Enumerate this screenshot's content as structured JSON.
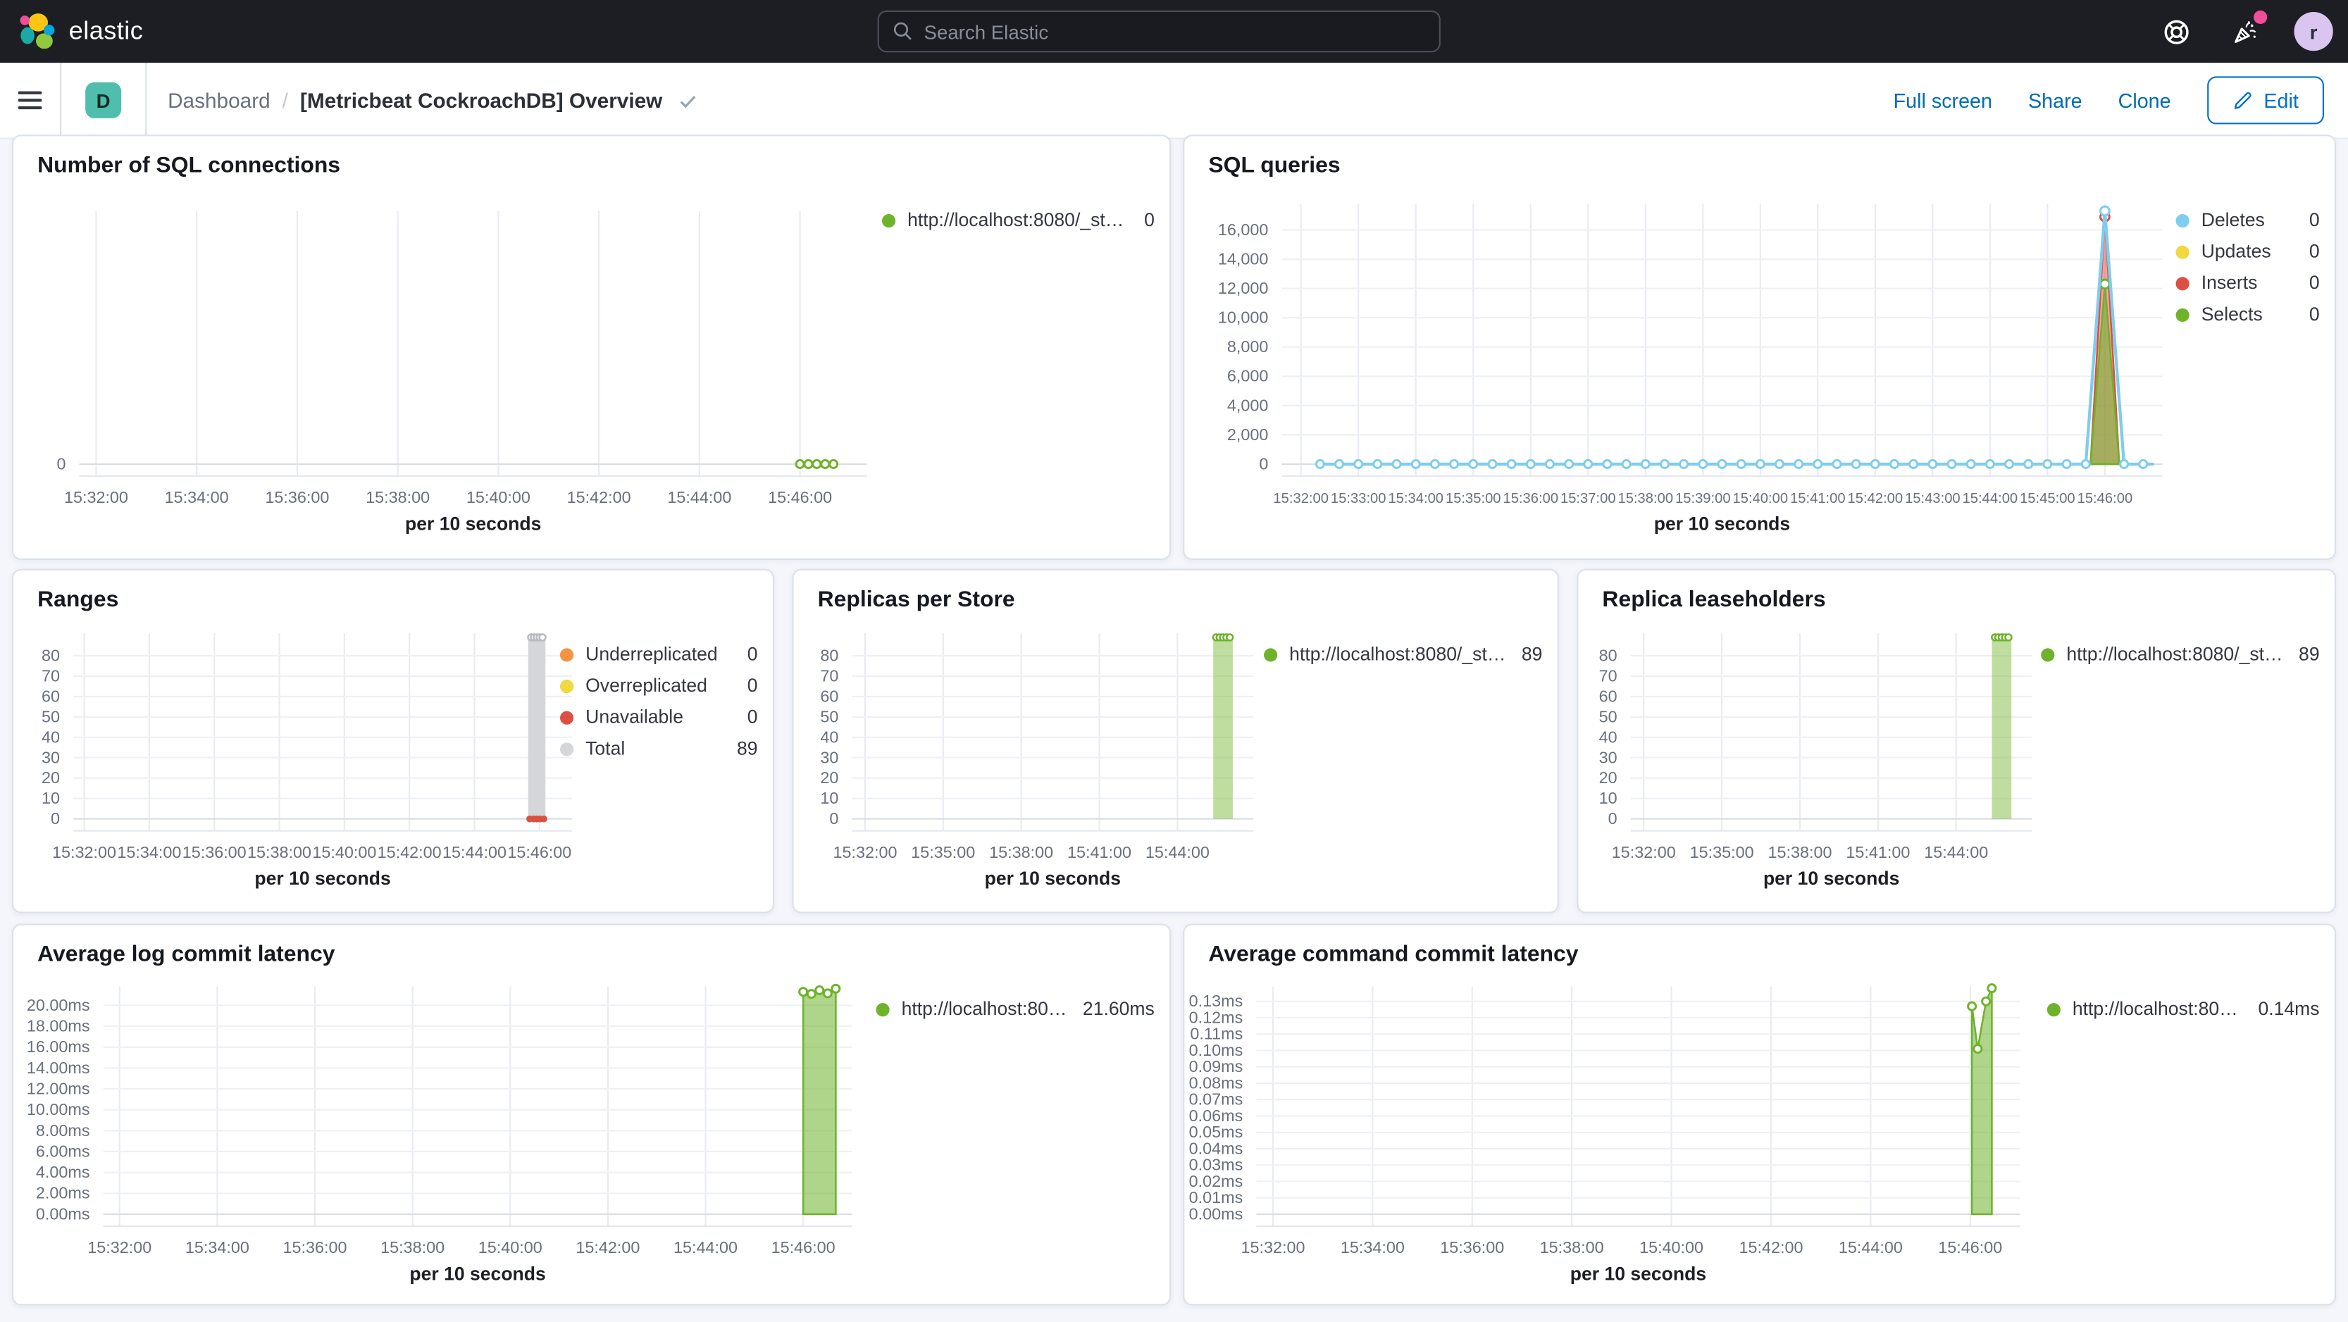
{
  "header": {
    "logo_text": "elastic",
    "search_placeholder": "Search Elastic",
    "avatar_initial": "r"
  },
  "toolbar": {
    "badge": "D",
    "breadcrumb_root": "Dashboard",
    "breadcrumb_separator": "/",
    "title": "[Metricbeat CockroachDB] Overview",
    "actions": [
      "Full screen",
      "Share",
      "Clone"
    ],
    "edit_label": "Edit"
  },
  "colors": {
    "topbar_bg": "#1d1e24",
    "link_blue": "#006bb4",
    "edit_blue": "#0071c2",
    "badge_teal": "#50beac",
    "notification_pink": "#f04e98",
    "avatar_purple": "#d9c5ef",
    "green": "#6eb32a",
    "light_blue": "#7eccf0",
    "yellow": "#f0d840",
    "red": "#dd4f43",
    "orange": "#f49342",
    "gray": "#d4d6da"
  },
  "charts": [
    {
      "type": "line",
      "title": "Number of SQL connections",
      "xlabel": "per 10 seconds",
      "x_domain": [
        "15:31:40",
        "15:47:20"
      ],
      "x_ticks": [
        "15:32:00",
        "15:34:00",
        "15:36:00",
        "15:38:00",
        "15:40:00",
        "15:42:00",
        "15:44:00",
        "15:46:00"
      ],
      "ylim": [
        0,
        10
      ],
      "y_ticks": [
        [
          0,
          "0"
        ]
      ],
      "grid": "v",
      "series": [
        {
          "name": "http://localhost:8080/_stat...",
          "type": "line",
          "color": "#6eb32a",
          "points": [
            [
              "15:46:00",
              0
            ],
            [
              "15:46:40",
              0
            ]
          ],
          "marker_step": {
            "from": "15:46:00",
            "to": "15:46:40",
            "step_s": 10,
            "value": 0
          }
        }
      ],
      "legend": {
        "width": 182,
        "items": [
          {
            "label": "http://localhost:8080/_stat...",
            "value": "0",
            "color": "#6eb32a"
          }
        ]
      }
    },
    {
      "type": "line",
      "title": "SQL queries",
      "xlabel": "per 10 seconds",
      "x_domain": [
        "15:31:40",
        "15:47:00"
      ],
      "x_ticks": [
        "15:32:00",
        "15:33:00",
        "15:34:00",
        "15:35:00",
        "15:36:00",
        "15:37:00",
        "15:38:00",
        "15:39:00",
        "15:40:00",
        "15:41:00",
        "15:42:00",
        "15:43:00",
        "15:44:00",
        "15:45:00",
        "15:46:00"
      ],
      "ylim": [
        0,
        17800
      ],
      "y_ticks": [
        [
          0,
          "0"
        ],
        [
          2000,
          "2,000"
        ],
        [
          4000,
          "4,000"
        ],
        [
          6000,
          "6,000"
        ],
        [
          8000,
          "8,000"
        ],
        [
          10000,
          "10,000"
        ],
        [
          12000,
          "12,000"
        ],
        [
          14000,
          "14,000"
        ],
        [
          16000,
          "16,000"
        ]
      ],
      "grid": "vh",
      "series": [
        {
          "name": "Inserts",
          "type": "area",
          "color": "#dd4f43",
          "fill_opacity": 0.5,
          "points": [
            [
              "15:45:45",
              0
            ],
            [
              "15:46:00",
              16900
            ],
            [
              "15:46:15",
              0
            ]
          ],
          "marker_points": [
            [
              "15:46:00",
              16900
            ]
          ]
        },
        {
          "name": "Selects",
          "type": "area",
          "color": "#6eb32a",
          "fill_opacity": 0.55,
          "points": [
            [
              "15:45:45",
              0
            ],
            [
              "15:46:00",
              12300
            ],
            [
              "15:46:15",
              0
            ]
          ],
          "marker_points": [
            [
              "15:46:00",
              12300
            ]
          ]
        },
        {
          "name": "Deletes",
          "type": "line",
          "color": "#7eccf0",
          "points": [
            [
              "15:32:20",
              0
            ],
            [
              "15:45:40",
              0
            ],
            [
              "15:46:00",
              17300
            ],
            [
              "15:46:20",
              0
            ],
            [
              "15:46:50",
              0
            ]
          ],
          "marker_step": {
            "from": "15:32:20",
            "to": "15:46:50",
            "step_s": 20,
            "value": 0,
            "skip_from": "15:45:50",
            "skip_to": "15:46:10"
          },
          "marker_points": [
            [
              "15:46:00",
              17300
            ]
          ]
        }
      ],
      "legend": {
        "width": 96,
        "items": [
          {
            "label": "Deletes",
            "value": "0",
            "color": "#7eccf0"
          },
          {
            "label": "Updates",
            "value": "0",
            "color": "#f0d840"
          },
          {
            "label": "Inserts",
            "value": "0",
            "color": "#dd4f43"
          },
          {
            "label": "Selects",
            "value": "0",
            "color": "#6eb32a"
          }
        ]
      }
    },
    {
      "type": "bar",
      "title": "Ranges",
      "xlabel": "per 10 seconds",
      "x_domain": [
        "15:31:40",
        "15:47:00"
      ],
      "x_ticks": [
        "15:32:00",
        "15:34:00",
        "15:36:00",
        "15:38:00",
        "15:40:00",
        "15:42:00",
        "15:44:00",
        "15:46:00"
      ],
      "ylim": [
        0,
        91
      ],
      "y_ticks": [
        [
          0,
          "0"
        ],
        [
          10,
          "10"
        ],
        [
          20,
          "20"
        ],
        [
          30,
          "30"
        ],
        [
          40,
          "40"
        ],
        [
          50,
          "50"
        ],
        [
          60,
          "60"
        ],
        [
          70,
          "70"
        ],
        [
          80,
          "80"
        ]
      ],
      "grid": "vh",
      "series": [
        {
          "name": "Total",
          "type": "bar",
          "color": "#d4d6da",
          "points": [
            [
              "15:45:55",
              89
            ]
          ],
          "bar_width_s": 32,
          "cap_markers": 5,
          "cap_color": "#b6bac1"
        },
        {
          "name": "Unavailable",
          "type": "dots",
          "color": "#dd4f43",
          "points": [
            [
              "15:45:42",
              0
            ],
            [
              "15:45:49",
              0
            ],
            [
              "15:45:55",
              0
            ],
            [
              "15:46:01",
              0
            ],
            [
              "15:46:08",
              0
            ]
          ]
        }
      ],
      "legend": {
        "width": 132,
        "items": [
          {
            "label": "Underreplicated",
            "value": "0",
            "color": "#f49342"
          },
          {
            "label": "Overreplicated",
            "value": "0",
            "color": "#f0d840"
          },
          {
            "label": "Unavailable",
            "value": "0",
            "color": "#dd4f43"
          },
          {
            "label": "Total",
            "value": "89",
            "color": "#d4d6da"
          }
        ]
      }
    },
    {
      "type": "bar",
      "title": "Replicas per Store",
      "xlabel": "per 10 seconds",
      "x_domain": [
        "15:31:30",
        "15:46:55"
      ],
      "x_ticks": [
        "15:32:00",
        "15:35:00",
        "15:38:00",
        "15:41:00",
        "15:44:00"
      ],
      "ylim": [
        0,
        91
      ],
      "y_ticks": [
        [
          0,
          "0"
        ],
        [
          10,
          "10"
        ],
        [
          20,
          "20"
        ],
        [
          30,
          "30"
        ],
        [
          40,
          "40"
        ],
        [
          50,
          "50"
        ],
        [
          60,
          "60"
        ],
        [
          70,
          "70"
        ],
        [
          80,
          "80"
        ]
      ],
      "grid": "vh",
      "series": [
        {
          "name": "http://localhost:8080/_sta...",
          "type": "bar",
          "color": "#6eb32a",
          "fill_opacity": 0.45,
          "points": [
            [
              "15:45:45",
              89
            ]
          ],
          "bar_width_s": 45,
          "cap_markers": 5,
          "cap_color": "#6eb32a"
        }
      ],
      "legend": {
        "width": 186,
        "items": [
          {
            "label": "http://localhost:8080/_sta...",
            "value": "89",
            "color": "#6eb32a"
          }
        ]
      }
    },
    {
      "type": "bar",
      "title": "Replica leaseholders",
      "xlabel": "per 10 seconds",
      "x_domain": [
        "15:31:30",
        "15:46:55"
      ],
      "x_ticks": [
        "15:32:00",
        "15:35:00",
        "15:38:00",
        "15:41:00",
        "15:44:00"
      ],
      "ylim": [
        0,
        91
      ],
      "y_ticks": [
        [
          0,
          "0"
        ],
        [
          10,
          "10"
        ],
        [
          20,
          "20"
        ],
        [
          30,
          "30"
        ],
        [
          40,
          "40"
        ],
        [
          50,
          "50"
        ],
        [
          60,
          "60"
        ],
        [
          70,
          "70"
        ],
        [
          80,
          "80"
        ]
      ],
      "grid": "vh",
      "series": [
        {
          "name": "http://localhost:8080/_sta...",
          "type": "bar",
          "color": "#6eb32a",
          "fill_opacity": 0.45,
          "points": [
            [
              "15:45:45",
              89
            ]
          ],
          "bar_width_s": 45,
          "cap_markers": 5,
          "cap_color": "#6eb32a"
        }
      ],
      "legend": {
        "width": 186,
        "items": [
          {
            "label": "http://localhost:8080/_sta...",
            "value": "89",
            "color": "#6eb32a"
          }
        ]
      }
    },
    {
      "type": "area",
      "title": "Average log commit latency",
      "xlabel": "per 10 seconds",
      "x_domain": [
        "15:31:40",
        "15:47:00"
      ],
      "x_ticks": [
        "15:32:00",
        "15:34:00",
        "15:36:00",
        "15:38:00",
        "15:40:00",
        "15:42:00",
        "15:44:00",
        "15:46:00"
      ],
      "ylim": [
        0,
        21.8
      ],
      "y_ticks": [
        [
          0,
          "0.00ms"
        ],
        [
          2,
          "2.00ms"
        ],
        [
          4,
          "4.00ms"
        ],
        [
          6,
          "6.00ms"
        ],
        [
          8,
          "8.00ms"
        ],
        [
          10,
          "10.00ms"
        ],
        [
          12,
          "12.00ms"
        ],
        [
          14,
          "14.00ms"
        ],
        [
          16,
          "16.00ms"
        ],
        [
          18,
          "18.00ms"
        ],
        [
          20,
          "20.00ms"
        ]
      ],
      "grid": "vh",
      "series": [
        {
          "name": "http://localhost:808...",
          "type": "area",
          "color": "#6eb32a",
          "fill_opacity": 0.55,
          "points": [
            [
              "15:46:00",
              21.3
            ],
            [
              "15:46:10",
              21.1
            ],
            [
              "15:46:20",
              21.45
            ],
            [
              "15:46:30",
              21.15
            ],
            [
              "15:46:40",
              21.6
            ]
          ],
          "markers": true
        }
      ],
      "legend": {
        "width": 186,
        "items": [
          {
            "label": "http://localhost:808...",
            "value": "21.60ms",
            "color": "#6eb32a"
          }
        ]
      }
    },
    {
      "type": "area",
      "title": "Average command commit latency",
      "xlabel": "per 10 seconds",
      "x_domain": [
        "15:31:40",
        "15:47:00"
      ],
      "x_ticks": [
        "15:32:00",
        "15:34:00",
        "15:36:00",
        "15:38:00",
        "15:40:00",
        "15:42:00",
        "15:44:00",
        "15:46:00"
      ],
      "ylim": [
        0,
        0.139
      ],
      "y_ticks": [
        [
          0,
          "0.00ms"
        ],
        [
          0.01,
          "0.01ms"
        ],
        [
          0.02,
          "0.02ms"
        ],
        [
          0.03,
          "0.03ms"
        ],
        [
          0.04,
          "0.04ms"
        ],
        [
          0.05,
          "0.05ms"
        ],
        [
          0.06,
          "0.06ms"
        ],
        [
          0.07,
          "0.07ms"
        ],
        [
          0.08,
          "0.08ms"
        ],
        [
          0.09,
          "0.09ms"
        ],
        [
          0.1,
          "0.10ms"
        ],
        [
          0.11,
          "0.11ms"
        ],
        [
          0.12,
          "0.12ms"
        ],
        [
          0.13,
          "0.13ms"
        ]
      ],
      "grid": "vh",
      "series": [
        {
          "name": "http://localhost:8080...",
          "type": "area",
          "color": "#6eb32a",
          "fill_opacity": 0.55,
          "points": [
            [
              "15:46:02",
              0.127
            ],
            [
              "15:46:09",
              0.101
            ],
            [
              "15:46:19",
              0.13
            ],
            [
              "15:46:26",
              0.138
            ]
          ],
          "markers": true
        }
      ],
      "legend": {
        "width": 182,
        "items": [
          {
            "label": "http://localhost:8080...",
            "value": "0.14ms",
            "color": "#6eb32a"
          }
        ]
      }
    }
  ]
}
